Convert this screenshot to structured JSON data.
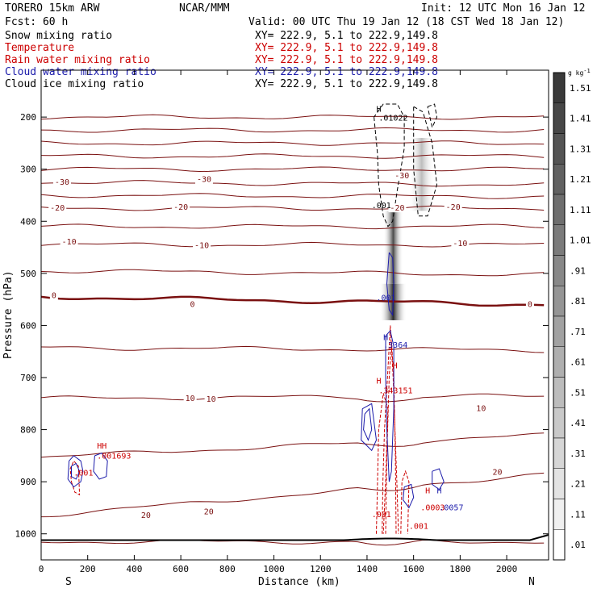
{
  "header": {
    "model": "TORERO  15km ARW",
    "org": "NCAR/MMM",
    "init": "Init: 12 UTC Mon 16 Jan 12",
    "fcst": "Fcst:   60 h",
    "valid": "Valid: 00 UTC Thu 19 Jan 12 (18 CST Wed 18 Jan 12)"
  },
  "fields": [
    {
      "name": "Snow mixing ratio",
      "xy": "XY= 222.9,  5.1 to 222.9,149.8",
      "color": "#000000"
    },
    {
      "name": "Temperature",
      "xy": "XY= 222.9,  5.1 to 222.9,149.8",
      "color": "#cc0000"
    },
    {
      "name": "Rain water mixing ratio",
      "xy": "XY= 222.9,  5.1 to 222.9,149.8",
      "color": "#cc0000"
    },
    {
      "name": "Cloud water mixing ratio",
      "xy": "XY= 222.9,  5.1 to 222.9,149.8",
      "color": "#1a1aaa"
    },
    {
      "name": "Cloud ice mixing ratio",
      "xy": "XY= 222.9,  5.1 to 222.9,149.8",
      "color": "#000000"
    }
  ],
  "chart_data": {
    "type": "cross-section",
    "xlabel": "Distance (km)",
    "ylabel": "Pressure (hPa)",
    "x_range": [
      0,
      2180
    ],
    "y_range": [
      1050,
      110
    ],
    "x_ticks": [
      0,
      200,
      400,
      600,
      800,
      1000,
      1200,
      1400,
      1600,
      1800,
      2000
    ],
    "y_ticks": [
      200,
      300,
      400,
      500,
      600,
      700,
      800,
      900,
      1000
    ],
    "end_labels": {
      "left": "S",
      "right": "N"
    },
    "colorbar": {
      "unit": "g kg",
      "unit_exp": "-1",
      "labels": [
        "1.51",
        "1.41",
        "1.31",
        "1.21",
        "1.11",
        "1.01",
        ".91",
        ".81",
        ".71",
        ".61",
        ".51",
        ".41",
        ".31",
        ".21",
        ".11",
        ".01"
      ],
      "colors": [
        "#3a3a3a",
        "#474747",
        "#545454",
        "#616161",
        "#6e6e6e",
        "#7b7b7b",
        "#888888",
        "#959595",
        "#a2a2a2",
        "#afafaf",
        "#bcbcbc",
        "#c9c9c9",
        "#d6d6d6",
        "#e3e3e3",
        "#f0f0f0",
        "#ffffff"
      ]
    },
    "temperature_contours": {
      "interval": 5,
      "levels": [
        {
          "value": -30,
          "p_left": 325,
          "p_right": 330
        },
        {
          "value": -20,
          "p_left": 375,
          "p_right": 375
        },
        {
          "value": -10,
          "p_left": 445,
          "p_right": 445
        },
        {
          "value": 0,
          "p_left": 545,
          "p_right": 560
        },
        {
          "value": 10,
          "p_left": 740,
          "p_right": 735
        },
        {
          "value": 20,
          "p_left": 965,
          "p_right": 885
        }
      ],
      "labels": [
        {
          "text": "-30",
          "x": 90,
          "p": 325
        },
        {
          "text": "-30",
          "x": 700,
          "p": 320
        },
        {
          "text": "-30",
          "x": 1550,
          "p": 313
        },
        {
          "text": "-20",
          "x": 70,
          "p": 375
        },
        {
          "text": "-20",
          "x": 600,
          "p": 373
        },
        {
          "text": "-20",
          "x": 1530,
          "p": 375
        },
        {
          "text": "-20",
          "x": 1770,
          "p": 373
        },
        {
          "text": "-10",
          "x": 120,
          "p": 440
        },
        {
          "text": "-10",
          "x": 690,
          "p": 447
        },
        {
          "text": "-10",
          "x": 1800,
          "p": 443
        },
        {
          "text": "0",
          "x": 55,
          "p": 543
        },
        {
          "text": "0",
          "x": 650,
          "p": 560
        },
        {
          "text": "0",
          "x": 2100,
          "p": 560
        },
        {
          "text": "10",
          "x": 640,
          "p": 740
        },
        {
          "text": "10",
          "x": 730,
          "p": 742
        },
        {
          "text": "10",
          "x": 1890,
          "p": 760
        },
        {
          "text": "20",
          "x": 450,
          "p": 965
        },
        {
          "text": "20",
          "x": 720,
          "p": 958
        },
        {
          "text": "20",
          "x": 1960,
          "p": 882
        }
      ]
    },
    "annotations": [
      {
        "text": "H",
        "x": 1440,
        "p": 190,
        "color": "#000000"
      },
      {
        "text": ".01022",
        "x": 1450,
        "p": 207,
        "color": "#000000"
      },
      {
        "text": ".001",
        "x": 1420,
        "p": 375,
        "color": "#000000"
      },
      {
        "text": ".001",
        "x": 1440,
        "p": 552,
        "color": "#1a1aaa"
      },
      {
        "text": "H",
        "x": 1470,
        "p": 628,
        "color": "#1a1aaa"
      },
      {
        "text": ".3364",
        "x": 1470,
        "p": 643,
        "color": "#1a1aaa"
      },
      {
        "text": "H",
        "x": 1510,
        "p": 682,
        "color": "#cc0000"
      },
      {
        "text": "H",
        "x": 1440,
        "p": 712,
        "color": "#cc0000"
      },
      {
        "text": ".343151",
        "x": 1450,
        "p": 730,
        "color": "#cc0000"
      },
      {
        "text": "HH",
        "x": 240,
        "p": 836,
        "color": "#cc0000"
      },
      {
        "text": ".001693",
        "x": 240,
        "p": 856,
        "color": "#cc0000"
      },
      {
        "text": ".001",
        "x": 140,
        "p": 888,
        "color": "#cc0000"
      },
      {
        "text": ".001",
        "x": 1420,
        "p": 968,
        "color": "#cc0000"
      },
      {
        "text": "H",
        "x": 1650,
        "p": 922,
        "color": "#cc0000"
      },
      {
        "text": "H",
        "x": 1700,
        "p": 922,
        "color": "#1a1aaa"
      },
      {
        "text": ".0003",
        "x": 1630,
        "p": 955,
        "color": "#cc0000"
      },
      {
        "text": ".0057",
        "x": 1710,
        "p": 955,
        "color": "#1a1aaa"
      },
      {
        "text": ".001",
        "x": 1580,
        "p": 990,
        "color": "#cc0000"
      }
    ]
  }
}
